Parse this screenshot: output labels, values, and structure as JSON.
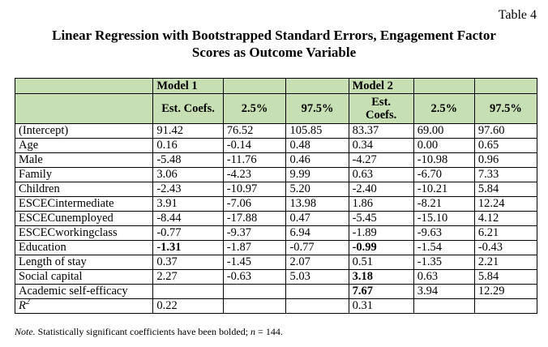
{
  "table_number": "Table 4",
  "title_line1": "Linear Regression with Bootstrapped Standard Errors, Engagement Factor",
  "title_line2": "Scores as Outcome Variable",
  "header": {
    "model1": "Model 1",
    "model2": "Model 2",
    "est_coefs": "Est. Coefs.",
    "est_line1": "Est.",
    "est_line2": "Coefs.",
    "p025": "2.5%",
    "p975": "97.5%"
  },
  "rows": [
    {
      "label": "(Intercept)",
      "m1": [
        "91.42",
        "76.52",
        "105.85"
      ],
      "m2": [
        "83.37",
        "69.00",
        "97.60"
      ],
      "b1": false,
      "b2": false
    },
    {
      "label": "Age",
      "m1": [
        "0.16",
        "-0.14",
        "0.48"
      ],
      "m2": [
        "0.34",
        "0.00",
        "0.65"
      ],
      "b1": false,
      "b2": false
    },
    {
      "label": "Male",
      "m1": [
        "-5.48",
        "-11.76",
        "0.46"
      ],
      "m2": [
        "-4.27",
        "-10.98",
        "0.96"
      ],
      "b1": false,
      "b2": false
    },
    {
      "label": "Family",
      "m1": [
        "3.06",
        "-4.23",
        "9.99"
      ],
      "m2": [
        "0.63",
        "-6.70",
        "7.33"
      ],
      "b1": false,
      "b2": false
    },
    {
      "label": "Children",
      "m1": [
        "-2.43",
        "-10.97",
        "5.20"
      ],
      "m2": [
        "-2.40",
        "-10.21",
        "5.84"
      ],
      "b1": false,
      "b2": false
    },
    {
      "label": "ESCECintermediate",
      "m1": [
        "3.91",
        "-7.06",
        "13.98"
      ],
      "m2": [
        "1.86",
        "-8.21",
        "12.24"
      ],
      "b1": false,
      "b2": false
    },
    {
      "label": "ESCECunemployed",
      "m1": [
        "-8.44",
        "-17.88",
        "0.47"
      ],
      "m2": [
        "-5.45",
        "-15.10",
        "4.12"
      ],
      "b1": false,
      "b2": false
    },
    {
      "label": "ESCECworkingclass",
      "m1": [
        "-0.77",
        "-9.37",
        "6.94"
      ],
      "m2": [
        "-1.89",
        "-9.63",
        "6.21"
      ],
      "b1": false,
      "b2": false
    },
    {
      "label": "Education",
      "m1": [
        "-1.31",
        "-1.87",
        "-0.77"
      ],
      "m2": [
        "-0.99",
        "-1.54",
        "-0.43"
      ],
      "b1": true,
      "b2": true
    },
    {
      "label": "Length of stay",
      "m1": [
        "0.37",
        "-1.45",
        "2.07"
      ],
      "m2": [
        "0.51",
        "-1.35",
        "2.21"
      ],
      "b1": false,
      "b2": false
    },
    {
      "label": "Social capital",
      "m1": [
        "2.27",
        "-0.63",
        "5.03"
      ],
      "m2": [
        "3.18",
        "0.63",
        "5.84"
      ],
      "b1": false,
      "b2": true
    },
    {
      "label": "Academic self-efficacy",
      "m1": [
        "",
        "",
        ""
      ],
      "m2": [
        "7.67",
        "3.94",
        "12.29"
      ],
      "b1": false,
      "b2": true
    }
  ],
  "r2": {
    "label_base": "R",
    "label_sup": "2",
    "m1": "0.22",
    "m2": "0.31"
  },
  "note": {
    "prefix": "Note.",
    "text": " Statistically significant coefficients have been bolded; ",
    "n_var": "n",
    "n_val": " = 144."
  }
}
